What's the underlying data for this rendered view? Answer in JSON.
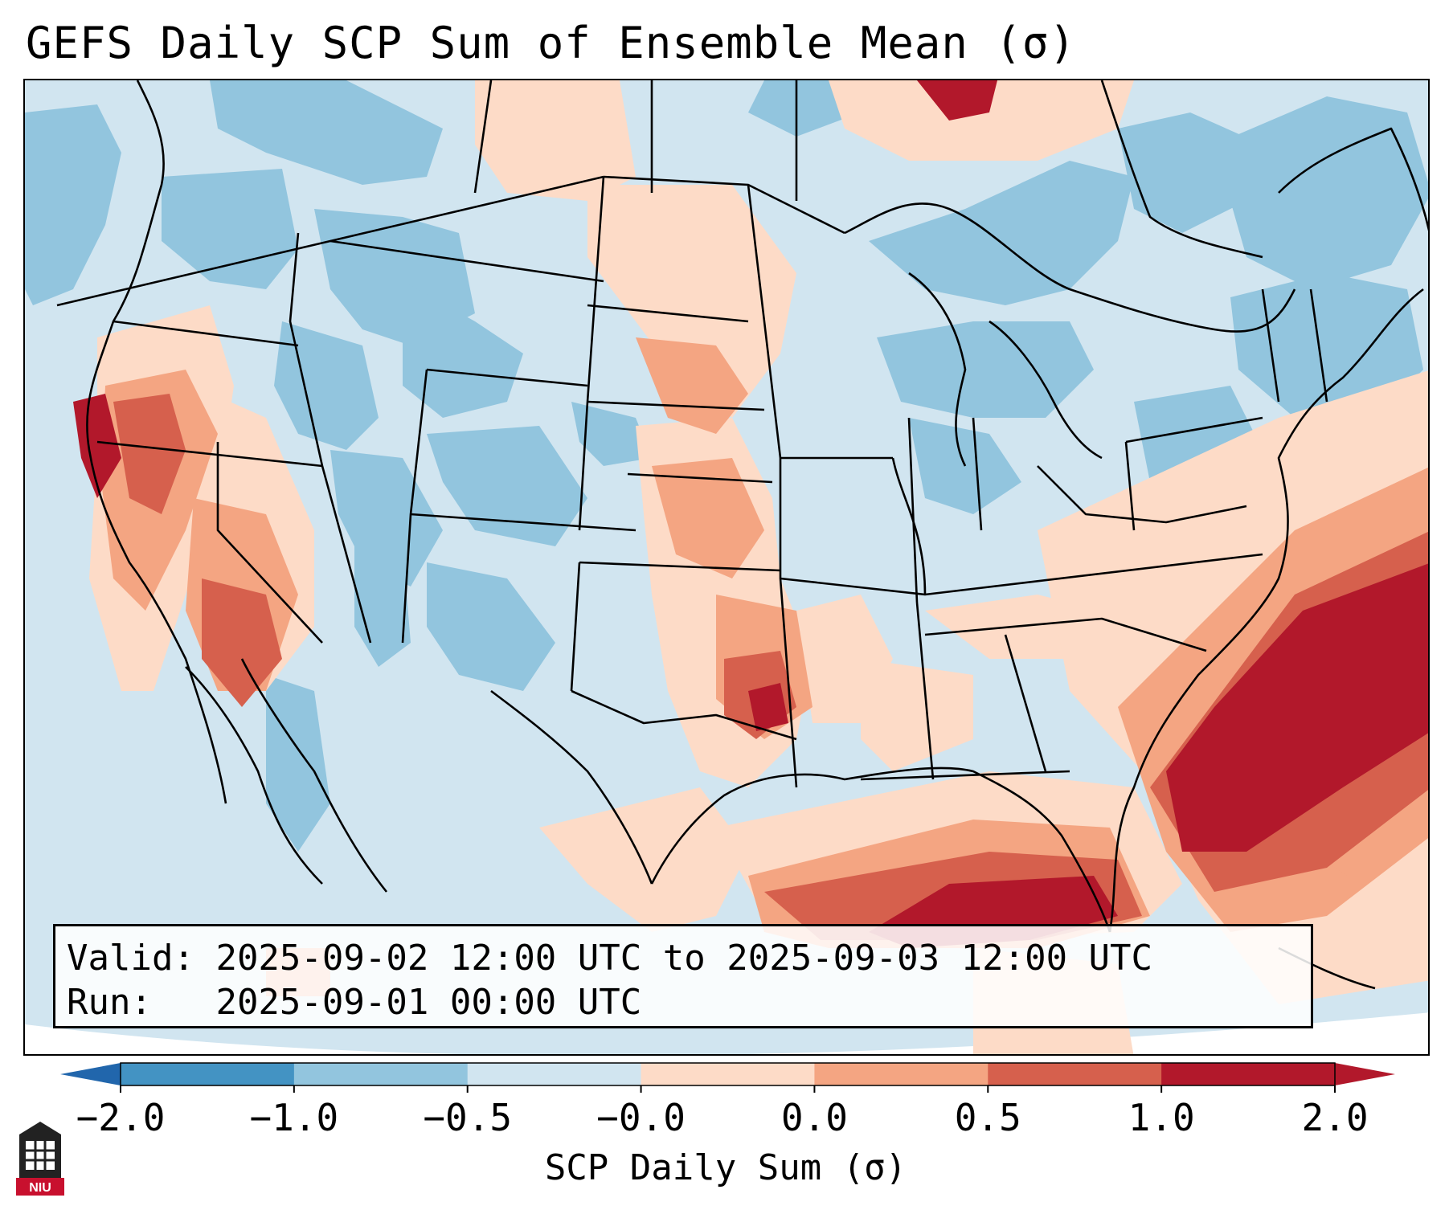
{
  "title": "GEFS Daily SCP Sum of Ensemble Mean (σ)",
  "info": {
    "valid_label": "Valid:",
    "valid_value": "2025-09-02 12:00 UTC to 2025-09-03 12:00 UTC",
    "run_label": "Run:",
    "run_value": "2025-09-01 00:00 UTC"
  },
  "colorbar": {
    "title": "SCP Daily Sum (σ)",
    "ticks": [
      "−2.0",
      "−1.0",
      "−0.5",
      "−0.0",
      "0.0",
      "0.5",
      "1.0",
      "2.0"
    ],
    "colors": [
      "#4393c3",
      "#92c5de",
      "#d1e5f0",
      "#f7f7f7",
      "#fddbc7",
      "#f4a582",
      "#d6604d",
      "#b2182b"
    ],
    "extend_low_color": "#2166ac",
    "extend_high_color": "#b2182b"
  },
  "logo": {
    "text": "NIU",
    "color": "#c8102e"
  },
  "map": {
    "ocean_color": "#d1e5f0",
    "outside_color": "#ffffff",
    "border_color": "#000000"
  }
}
